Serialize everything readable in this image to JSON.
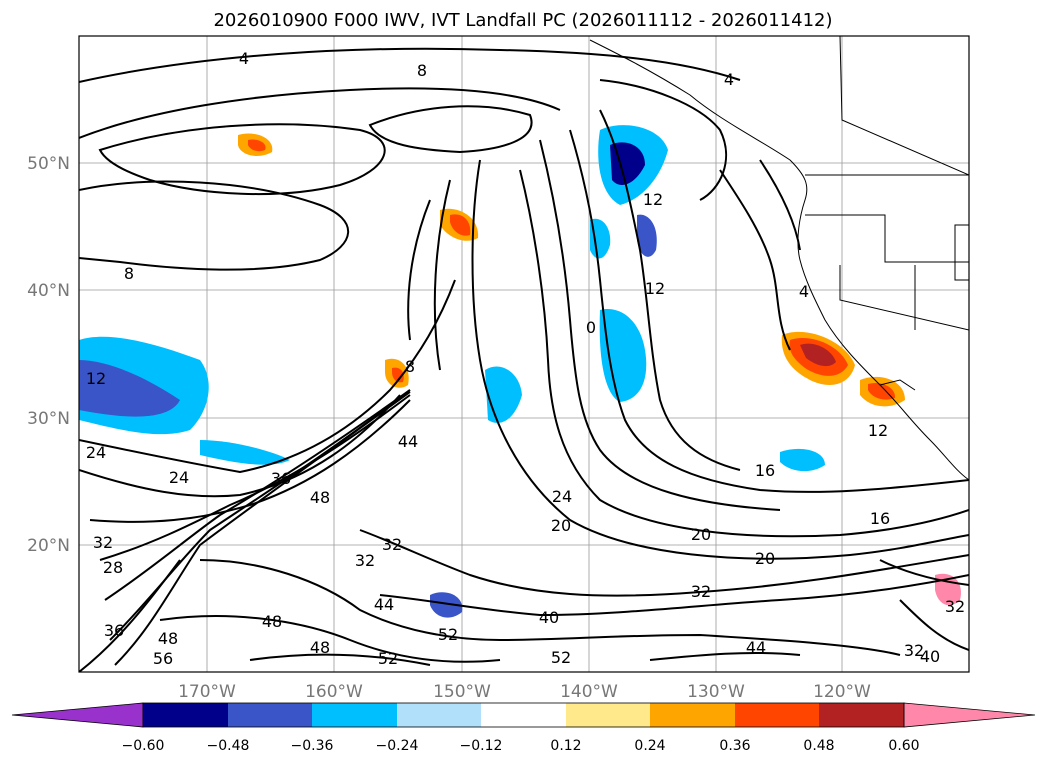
{
  "title": "2026010900 F000 IWV, IVT Landfall PC (2026011112 - 2026011412)",
  "lat_ticks": [
    "50°N",
    "40°N",
    "30°N",
    "20°N"
  ],
  "lon_ticks": [
    "170°W",
    "160°W",
    "150°W",
    "140°W",
    "130°W",
    "120°W"
  ],
  "colorbar": {
    "ticks": [
      "−0.60",
      "−0.48",
      "−0.36",
      "−0.24",
      "−0.12",
      "0.12",
      "0.24",
      "0.36",
      "0.48",
      "0.60"
    ],
    "under_color": "#9932cc",
    "over_color": "#ff88aa",
    "colors": [
      "#00008b",
      "#3a55c8",
      "#00bfff",
      "#b0e0fa",
      "#ffffff",
      "#ffe98a",
      "#ffa500",
      "#ff4500",
      "#b22222"
    ]
  },
  "contour_labels": [
    {
      "text": "4"
    },
    {
      "text": "8"
    },
    {
      "text": "4"
    },
    {
      "text": "8"
    },
    {
      "text": "12"
    },
    {
      "text": "12"
    },
    {
      "text": "4"
    },
    {
      "text": "0"
    },
    {
      "text": "8"
    },
    {
      "text": "44"
    },
    {
      "text": "24"
    },
    {
      "text": "36"
    },
    {
      "text": "48"
    },
    {
      "text": "24"
    },
    {
      "text": "20"
    },
    {
      "text": "16"
    },
    {
      "text": "20"
    },
    {
      "text": "20"
    },
    {
      "text": "16"
    },
    {
      "text": "12"
    },
    {
      "text": "32"
    },
    {
      "text": "44"
    },
    {
      "text": "40"
    },
    {
      "text": "32"
    },
    {
      "text": "48"
    },
    {
      "text": "48"
    },
    {
      "text": "52"
    },
    {
      "text": "52"
    },
    {
      "text": "52"
    },
    {
      "text": "44"
    },
    {
      "text": "32"
    },
    {
      "text": "40"
    },
    {
      "text": "32"
    },
    {
      "text": "24"
    },
    {
      "text": "28"
    },
    {
      "text": "32"
    },
    {
      "text": "36"
    },
    {
      "text": "48"
    },
    {
      "text": "56"
    },
    {
      "text": "12"
    },
    {
      "text": "32"
    }
  ]
}
